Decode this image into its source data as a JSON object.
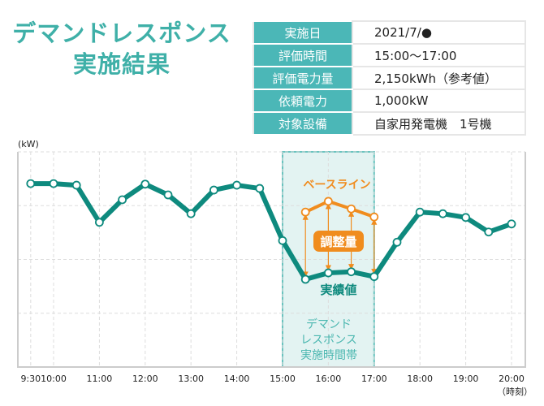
{
  "title": {
    "line1": "デマンドレスポンス",
    "line2": "実施結果"
  },
  "info_table": [
    {
      "label": "実施日",
      "value": "2021/7/●"
    },
    {
      "label": "評価時間",
      "value": "15:00〜17:00"
    },
    {
      "label": "評価電力量",
      "value": "2,150kWh（参考値）"
    },
    {
      "label": "依頼電力",
      "value": "1,000kW"
    },
    {
      "label": "対象設備",
      "value": "自家用発電機　1号機"
    }
  ],
  "chart_data": {
    "type": "line",
    "ylabel": "(kW)",
    "xlabel": "（時刻）",
    "ylim": [
      0,
      4
    ],
    "y_tick_labels": false,
    "grid": true,
    "x_tick_labels": [
      "9:30",
      "10:00",
      "11:00",
      "12:00",
      "13:00",
      "14:00",
      "15:00",
      "16:00",
      "17:00",
      "18:00",
      "19:00",
      "20:00"
    ],
    "x": [
      "9:30",
      "10:00",
      "10:30",
      "11:00",
      "11:30",
      "12:00",
      "12:30",
      "13:00",
      "13:30",
      "14:00",
      "14:30",
      "15:00",
      "15:30",
      "16:00",
      "16:30",
      "17:00",
      "17:30",
      "18:00",
      "18:30",
      "19:00",
      "19:30",
      "20:00"
    ],
    "series": [
      {
        "name": "実績値",
        "color": "#0e8a7e",
        "values": [
          3.41,
          3.41,
          3.38,
          2.69,
          3.11,
          3.4,
          3.2,
          2.85,
          3.29,
          3.38,
          3.32,
          2.35,
          1.63,
          1.75,
          1.77,
          1.68,
          2.32,
          2.88,
          2.85,
          2.78,
          2.51,
          2.66
        ]
      },
      {
        "name": "ベースライン",
        "color": "#f08c1e",
        "x": [
          "15:30",
          "16:00",
          "16:30",
          "17:00"
        ],
        "values": [
          2.88,
          3.08,
          2.94,
          2.79
        ]
      }
    ],
    "highlight_band": {
      "from": "15:00",
      "to": "17:00",
      "label_lines": [
        "デマンド",
        "レスポンス",
        "実施時間帯"
      ],
      "fill": "#e3f3f2",
      "stroke": "#6ac4bf"
    },
    "annotation": {
      "label": "調整量",
      "color": "#f08c1e"
    }
  }
}
